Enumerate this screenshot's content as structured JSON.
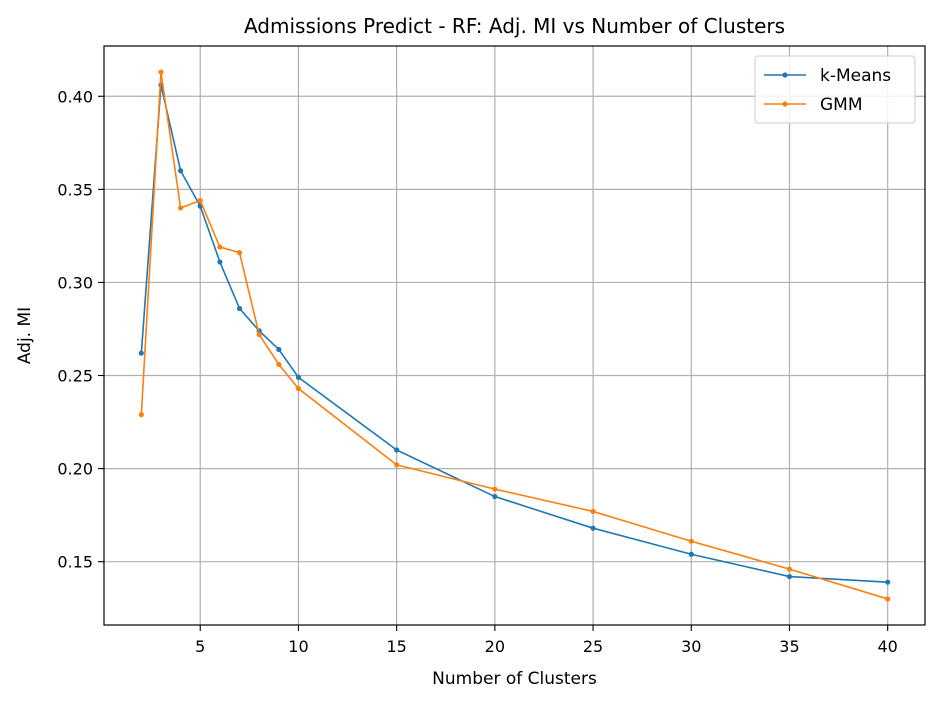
{
  "chart_data": {
    "type": "line",
    "title": "Admissions Predict - RF: Adj. MI vs Number of Clusters",
    "xlabel": "Number of Clusters",
    "ylabel": "Adj. MI",
    "xlim": [
      0.1,
      41.9
    ],
    "ylim": [
      0.116,
      0.427
    ],
    "xticks": [
      5,
      10,
      15,
      20,
      25,
      30,
      35,
      40
    ],
    "xtick_labels": [
      "5",
      "10",
      "15",
      "20",
      "25",
      "30",
      "35",
      "40"
    ],
    "yticks": [
      0.15,
      0.2,
      0.25,
      0.3,
      0.35,
      0.4
    ],
    "ytick_labels": [
      "0.15",
      "0.20",
      "0.25",
      "0.30",
      "0.35",
      "0.40"
    ],
    "grid": true,
    "legend_position": "top-right",
    "x": [
      2,
      3,
      4,
      5,
      6,
      7,
      8,
      9,
      10,
      15,
      20,
      25,
      30,
      35,
      40
    ],
    "series": [
      {
        "name": "k-Means",
        "color": "#1f77b4",
        "values": [
          0.262,
          0.406,
          0.36,
          0.341,
          0.311,
          0.286,
          0.274,
          0.264,
          0.249,
          0.21,
          0.185,
          0.168,
          0.154,
          0.142,
          0.139
        ]
      },
      {
        "name": "GMM",
        "color": "#ff7f0e",
        "values": [
          0.229,
          0.413,
          0.34,
          0.344,
          0.319,
          0.316,
          0.272,
          0.256,
          0.243,
          0.202,
          0.189,
          0.177,
          0.161,
          0.146,
          0.13
        ]
      }
    ]
  }
}
